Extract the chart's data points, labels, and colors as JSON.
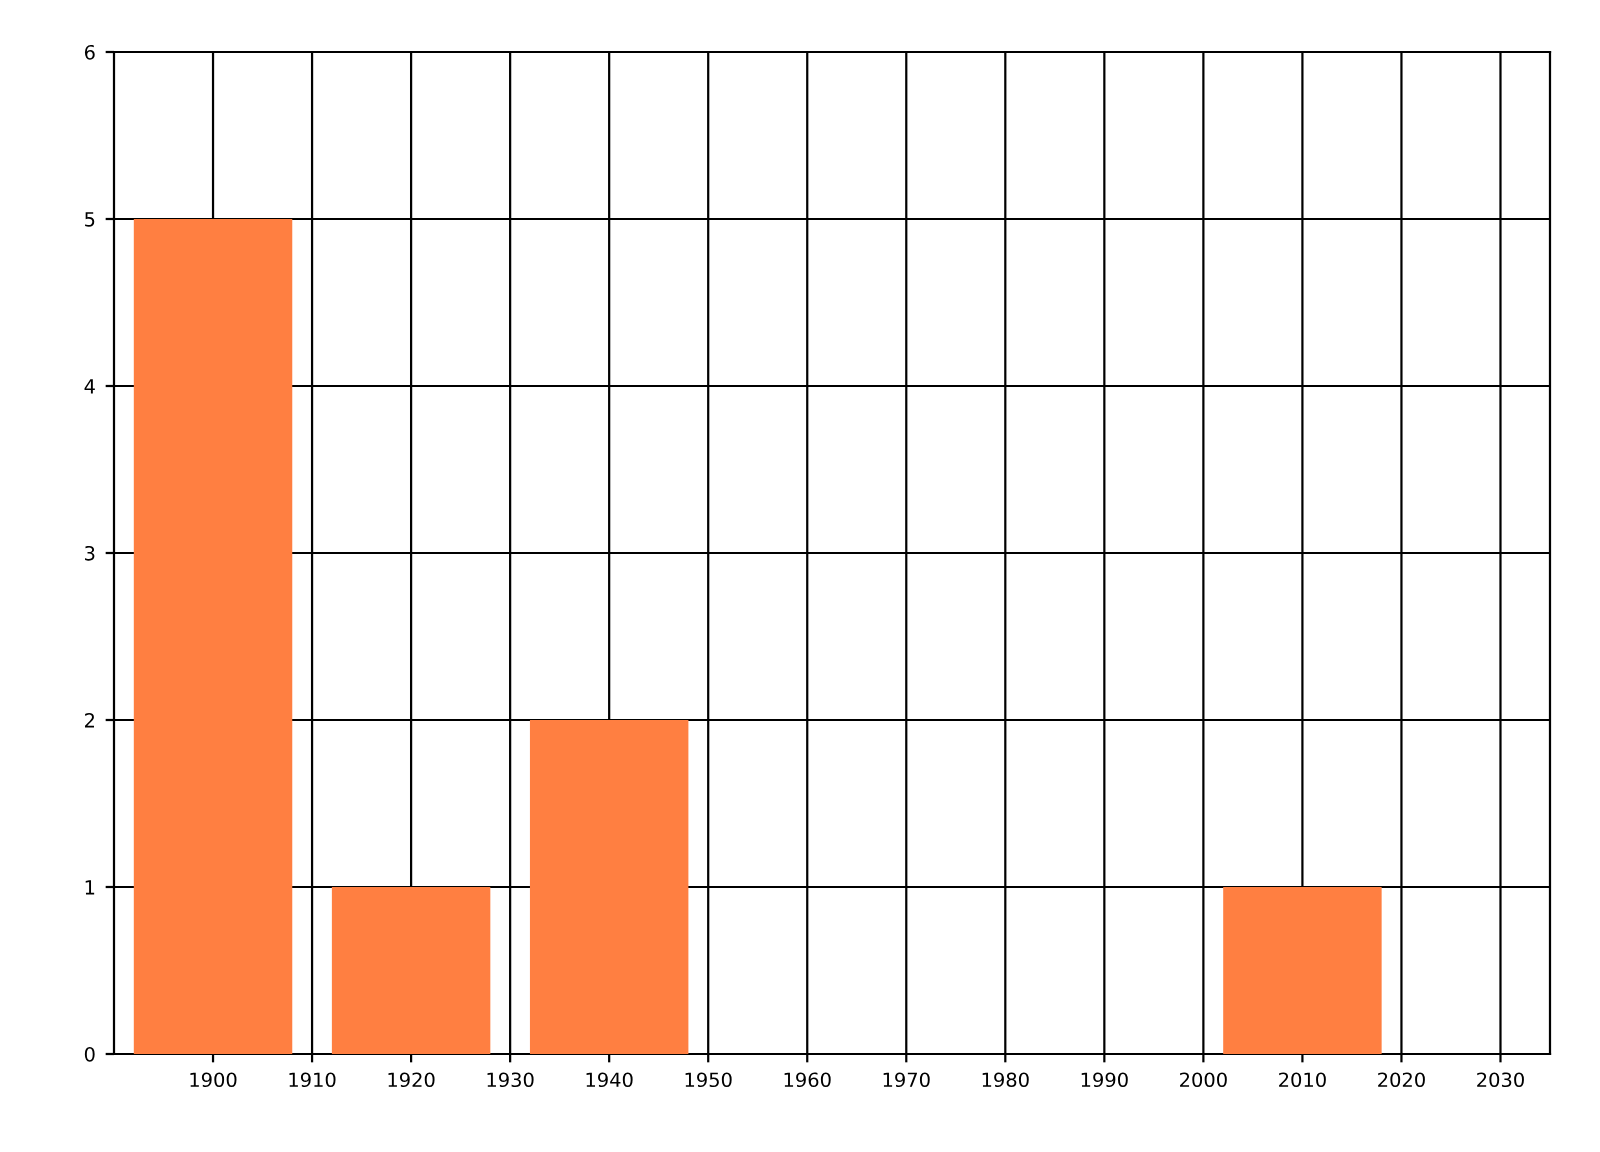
{
  "chart_data": {
    "type": "bar",
    "x": [
      1900,
      1920,
      1940,
      2010
    ],
    "series": [
      {
        "color": "#ff7f41",
        "values": [
          5,
          1,
          2,
          1
        ]
      }
    ],
    "xlim": [
      1890,
      2035
    ],
    "xticks": [
      1900,
      1910,
      1920,
      1930,
      1940,
      1950,
      1960,
      1970,
      1980,
      1990,
      2000,
      2010,
      2020,
      2030
    ],
    "ylim": [
      0,
      6
    ],
    "yticks": [
      0,
      1,
      2,
      3,
      4,
      5,
      6
    ],
    "grid": true,
    "legend": false
  }
}
